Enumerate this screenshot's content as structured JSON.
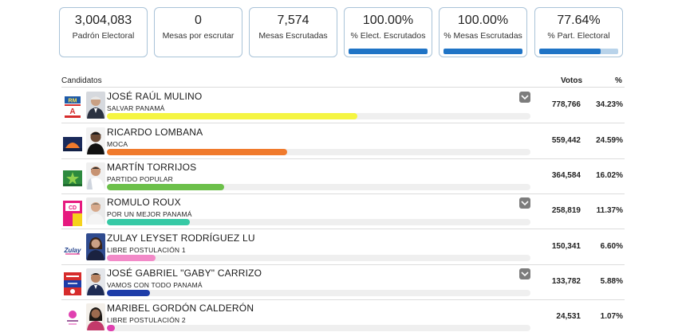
{
  "stats": [
    {
      "value": "3,004,083",
      "label": "Padrón Electoral"
    },
    {
      "value": "0",
      "label": "Mesas por escrutar"
    },
    {
      "value": "7,574",
      "label": "Mesas Escrutadas"
    },
    {
      "value": "100.00%",
      "label": "% Elect. Escrutados",
      "progress": 1.0
    },
    {
      "value": "100.00%",
      "label": "% Mesas Escrutadas",
      "progress": 1.0
    },
    {
      "value": "77.64%",
      "label": "% Part. Electoral",
      "progress": 0.7764
    }
  ],
  "table": {
    "col_candidates": "Candidatos",
    "col_votes": "Votos",
    "col_pct": "%"
  },
  "candidates": [
    {
      "name": "JOSÉ RAÚL MULINO",
      "party": "SALVAR PANAMÁ",
      "votes": "778,766",
      "pct": "34.23%",
      "share": 0.3423,
      "color": "#f5f542",
      "logo_text": "RM",
      "expand": true
    },
    {
      "name": "RICARDO LOMBANA",
      "party": "MOCA",
      "votes": "559,442",
      "pct": "24.59%",
      "share": 0.2459,
      "color": "#f07a2c",
      "expand": false
    },
    {
      "name": "MARTÍN TORRIJOS",
      "party": "PARTIDO POPULAR",
      "votes": "364,584",
      "pct": "16.02%",
      "share": 0.1602,
      "color": "#6cc04a",
      "expand": false
    },
    {
      "name": "ROMULO ROUX",
      "party": "POR UN MEJOR PANAMÁ",
      "votes": "258,819",
      "pct": "11.37%",
      "share": 0.1137,
      "color": "#36c9a5",
      "logo_text": "CD",
      "expand": true
    },
    {
      "name": "ZULAY LEYSET RODRÍGUEZ LU",
      "party": "LIBRE POSTULACIÓN 1",
      "votes": "150,341",
      "pct": "6.60%",
      "share": 0.066,
      "color": "#f28ac8",
      "logo_text": "Zulay",
      "expand": false
    },
    {
      "name": "JOSÉ GABRIEL \"GABY\" CARRIZO",
      "party": "VAMOS CON TODO PANAMÁ",
      "votes": "133,782",
      "pct": "5.88%",
      "share": 0.0588,
      "color": "#1d3ca8",
      "expand": true
    },
    {
      "name": "MARIBEL GORDÓN CALDERÓN",
      "party": "LIBRE POSTULACIÓN 2",
      "votes": "24,531",
      "pct": "1.07%",
      "share": 0.0107,
      "color": "#e040b0",
      "expand": false
    }
  ]
}
